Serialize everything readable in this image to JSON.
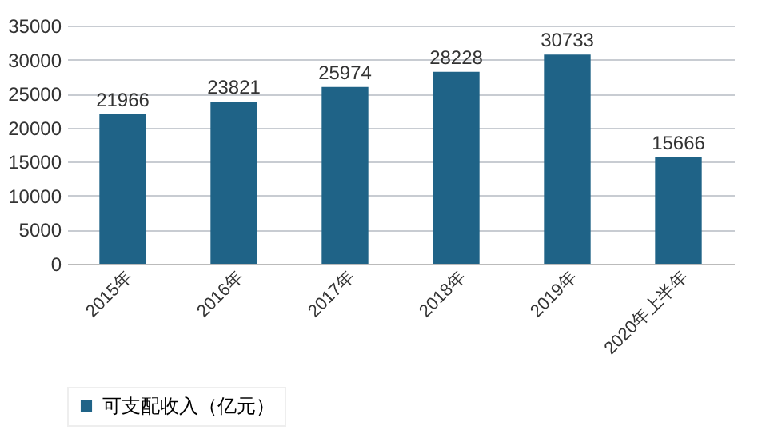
{
  "chart_data": {
    "type": "bar",
    "categories": [
      "2015年",
      "2016年",
      "2017年",
      "2018年",
      "2019年",
      "2020年上半年"
    ],
    "series": [
      {
        "name": "可支配收入（亿元）",
        "color": "#1f6387",
        "values": [
          21966,
          23821,
          25974,
          28228,
          30733,
          15666
        ]
      }
    ],
    "ylim": [
      0,
      35000
    ],
    "yticks": [
      0,
      5000,
      10000,
      15000,
      20000,
      25000,
      30000,
      35000
    ],
    "grid": "y",
    "legend": "bottom",
    "data_labels": true
  }
}
